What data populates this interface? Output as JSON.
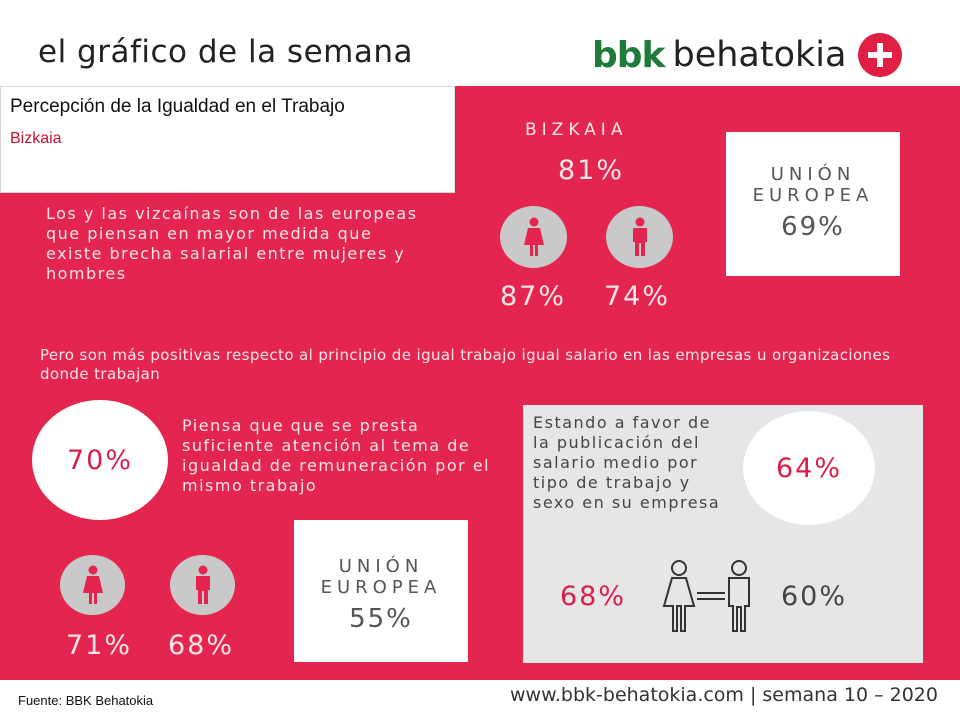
{
  "header": {
    "title": "el gráfico de la semana"
  },
  "logo": {
    "brand": "bbk",
    "name": "behatokia",
    "icon": "plus-cross-icon",
    "brand_color": "#1f7a3c",
    "accent_color": "#e11f42"
  },
  "title_box": {
    "title": "Percepción de la Igualdad en el Trabajo",
    "subtitle": "Bizkaia"
  },
  "section1": {
    "text": "Los y las vizcaínas son de las europeas que piensan en mayor medida que existe brecha salarial entre mujeres y hombres",
    "region_label": "BIZKAIA",
    "region_value": "81%",
    "women_value": "87%",
    "men_value": "74%",
    "eu_label_line1": "UNIÓN",
    "eu_label_line2": "EUROPEA",
    "eu_value": "69%"
  },
  "section2": {
    "intro": "Pero son más positivas respecto al principio de igual trabajo igual salario en las empresas u organizaciones donde trabajan",
    "attention_value": "70%",
    "attention_text": "Piensa que que se presta suficiente atención al tema de igualdad de remuneración por el mismo trabajo",
    "women_value": "71%",
    "men_value": "68%",
    "eu_label_line1": "UNIÓN",
    "eu_label_line2": "EUROPEA",
    "eu_value": "55%",
    "publication_text": "Estando a favor de la publicación del salario medio por tipo de trabajo y sexo en su empresa",
    "publication_value": "64%",
    "publication_women": "68%",
    "publication_men": "60%"
  },
  "colors": {
    "panel": "#e3254f",
    "panel_text": "#fde5ea",
    "grey_box": "#e6e6e6",
    "accent_text": "#d81f4a"
  },
  "footer": {
    "source": "Fuente:  BBK Behatokia",
    "url": "www.bbk-behatokia.com | semana 10 – 2020"
  }
}
